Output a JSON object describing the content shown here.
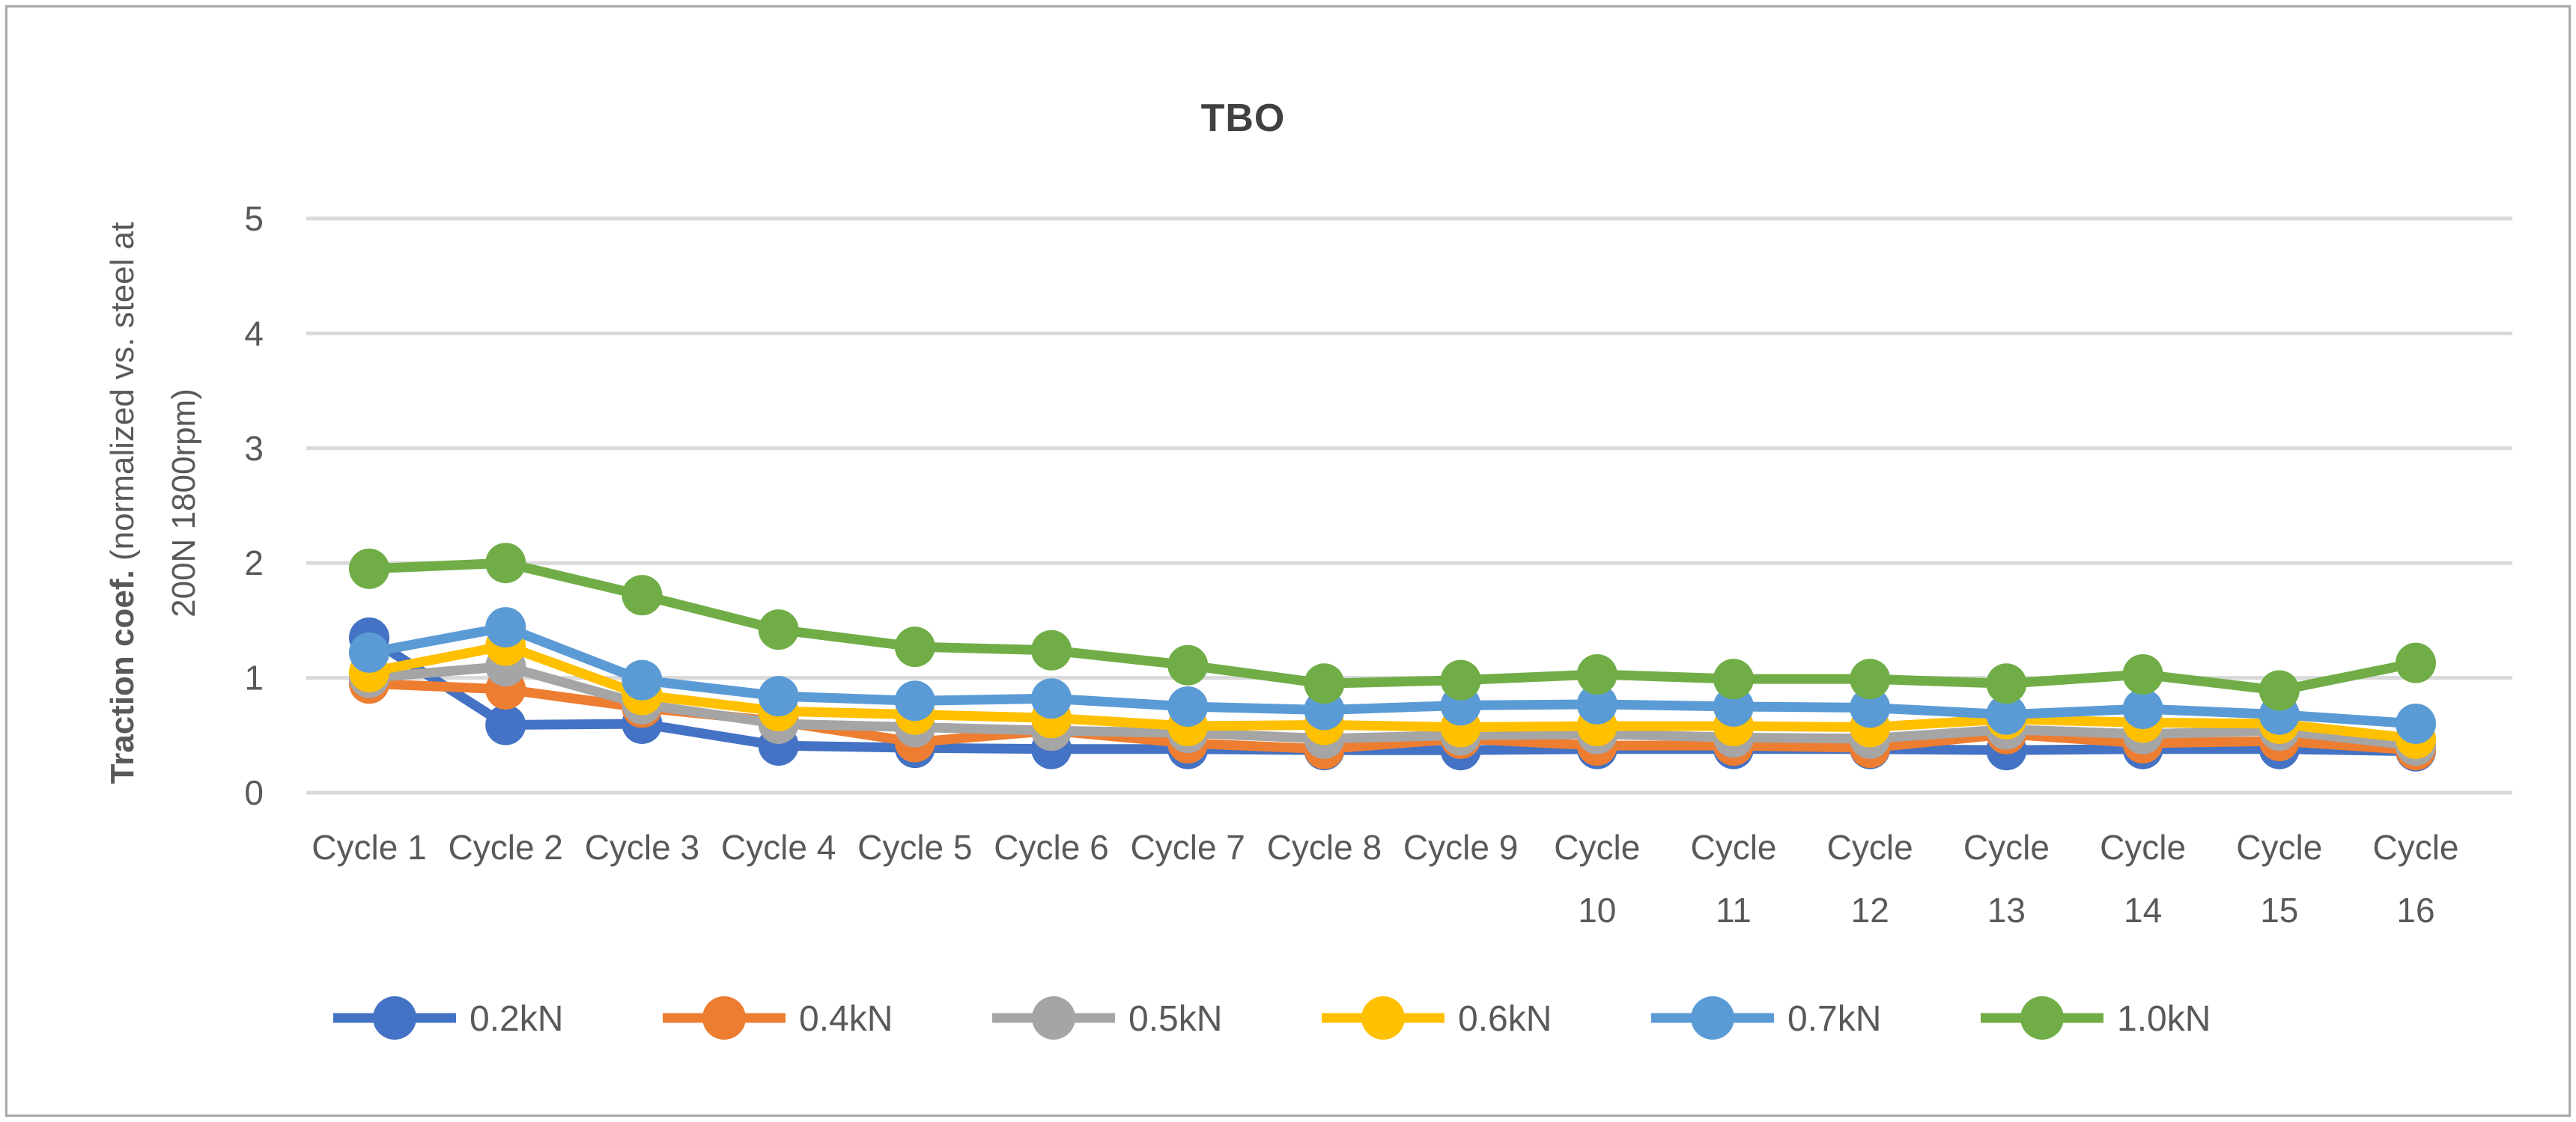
{
  "window": {
    "background": "#ffffff",
    "border_color": "#a9a9a9"
  },
  "style": {
    "text_color": "#595959",
    "title_color": "#404040",
    "gridline_color": "#d9d9d9"
  },
  "chart_data": {
    "type": "line",
    "title": "TBO",
    "ylabel": "Traction coef. (normalized vs. steel at 200N 1800rpm)",
    "ylabel_line1_bold": "Traction coef.",
    "ylabel_line1_rest": " (normalized vs. steel  at",
    "ylabel_line2": "200N 1800rpm)",
    "xlabel": "",
    "ylim": [
      0,
      5
    ],
    "yticks": [
      "0",
      "1",
      "2",
      "3",
      "4",
      "5"
    ],
    "grid": true,
    "legend_position": "bottom",
    "categories": [
      "Cycle 1",
      "Cycle 2",
      "Cycle 3",
      "Cycle 4",
      "Cycle 5",
      "Cycle 6",
      "Cycle 7",
      "Cycle 8",
      "Cycle 9",
      "Cycle 10",
      "Cycle 11",
      "Cycle 12",
      "Cycle 13",
      "Cycle 14",
      "Cycle 15",
      "Cycle 16"
    ],
    "series": [
      {
        "name": "0.2kN",
        "color": "#4472C4",
        "values": [
          1.35,
          0.59,
          0.6,
          0.41,
          0.39,
          0.38,
          0.38,
          0.37,
          0.37,
          0.38,
          0.38,
          0.38,
          0.37,
          0.38,
          0.38,
          0.36
        ]
      },
      {
        "name": "0.4kN",
        "color": "#ED7D31",
        "values": [
          0.95,
          0.9,
          0.74,
          0.62,
          0.44,
          0.54,
          0.43,
          0.38,
          0.47,
          0.41,
          0.41,
          0.39,
          0.51,
          0.43,
          0.45,
          0.37
        ]
      },
      {
        "name": "0.5kN",
        "color": "#A5A5A5",
        "values": [
          1.0,
          1.1,
          0.77,
          0.6,
          0.57,
          0.54,
          0.52,
          0.47,
          0.5,
          0.51,
          0.48,
          0.47,
          0.55,
          0.51,
          0.54,
          0.41
        ]
      },
      {
        "name": "0.6kN",
        "color": "#FFC000",
        "values": [
          1.05,
          1.28,
          0.85,
          0.71,
          0.68,
          0.65,
          0.58,
          0.59,
          0.57,
          0.58,
          0.58,
          0.57,
          0.64,
          0.61,
          0.6,
          0.47
        ]
      },
      {
        "name": "0.7kN",
        "color": "#5B9BD5",
        "values": [
          1.22,
          1.44,
          0.98,
          0.84,
          0.8,
          0.82,
          0.75,
          0.72,
          0.76,
          0.77,
          0.75,
          0.74,
          0.68,
          0.73,
          0.68,
          0.6
        ]
      },
      {
        "name": "1.0kN",
        "color": "#70AD47",
        "values": [
          1.95,
          2.0,
          1.72,
          1.42,
          1.27,
          1.24,
          1.11,
          0.95,
          0.98,
          1.03,
          0.99,
          0.99,
          0.95,
          1.03,
          0.89,
          1.13
        ]
      }
    ]
  }
}
